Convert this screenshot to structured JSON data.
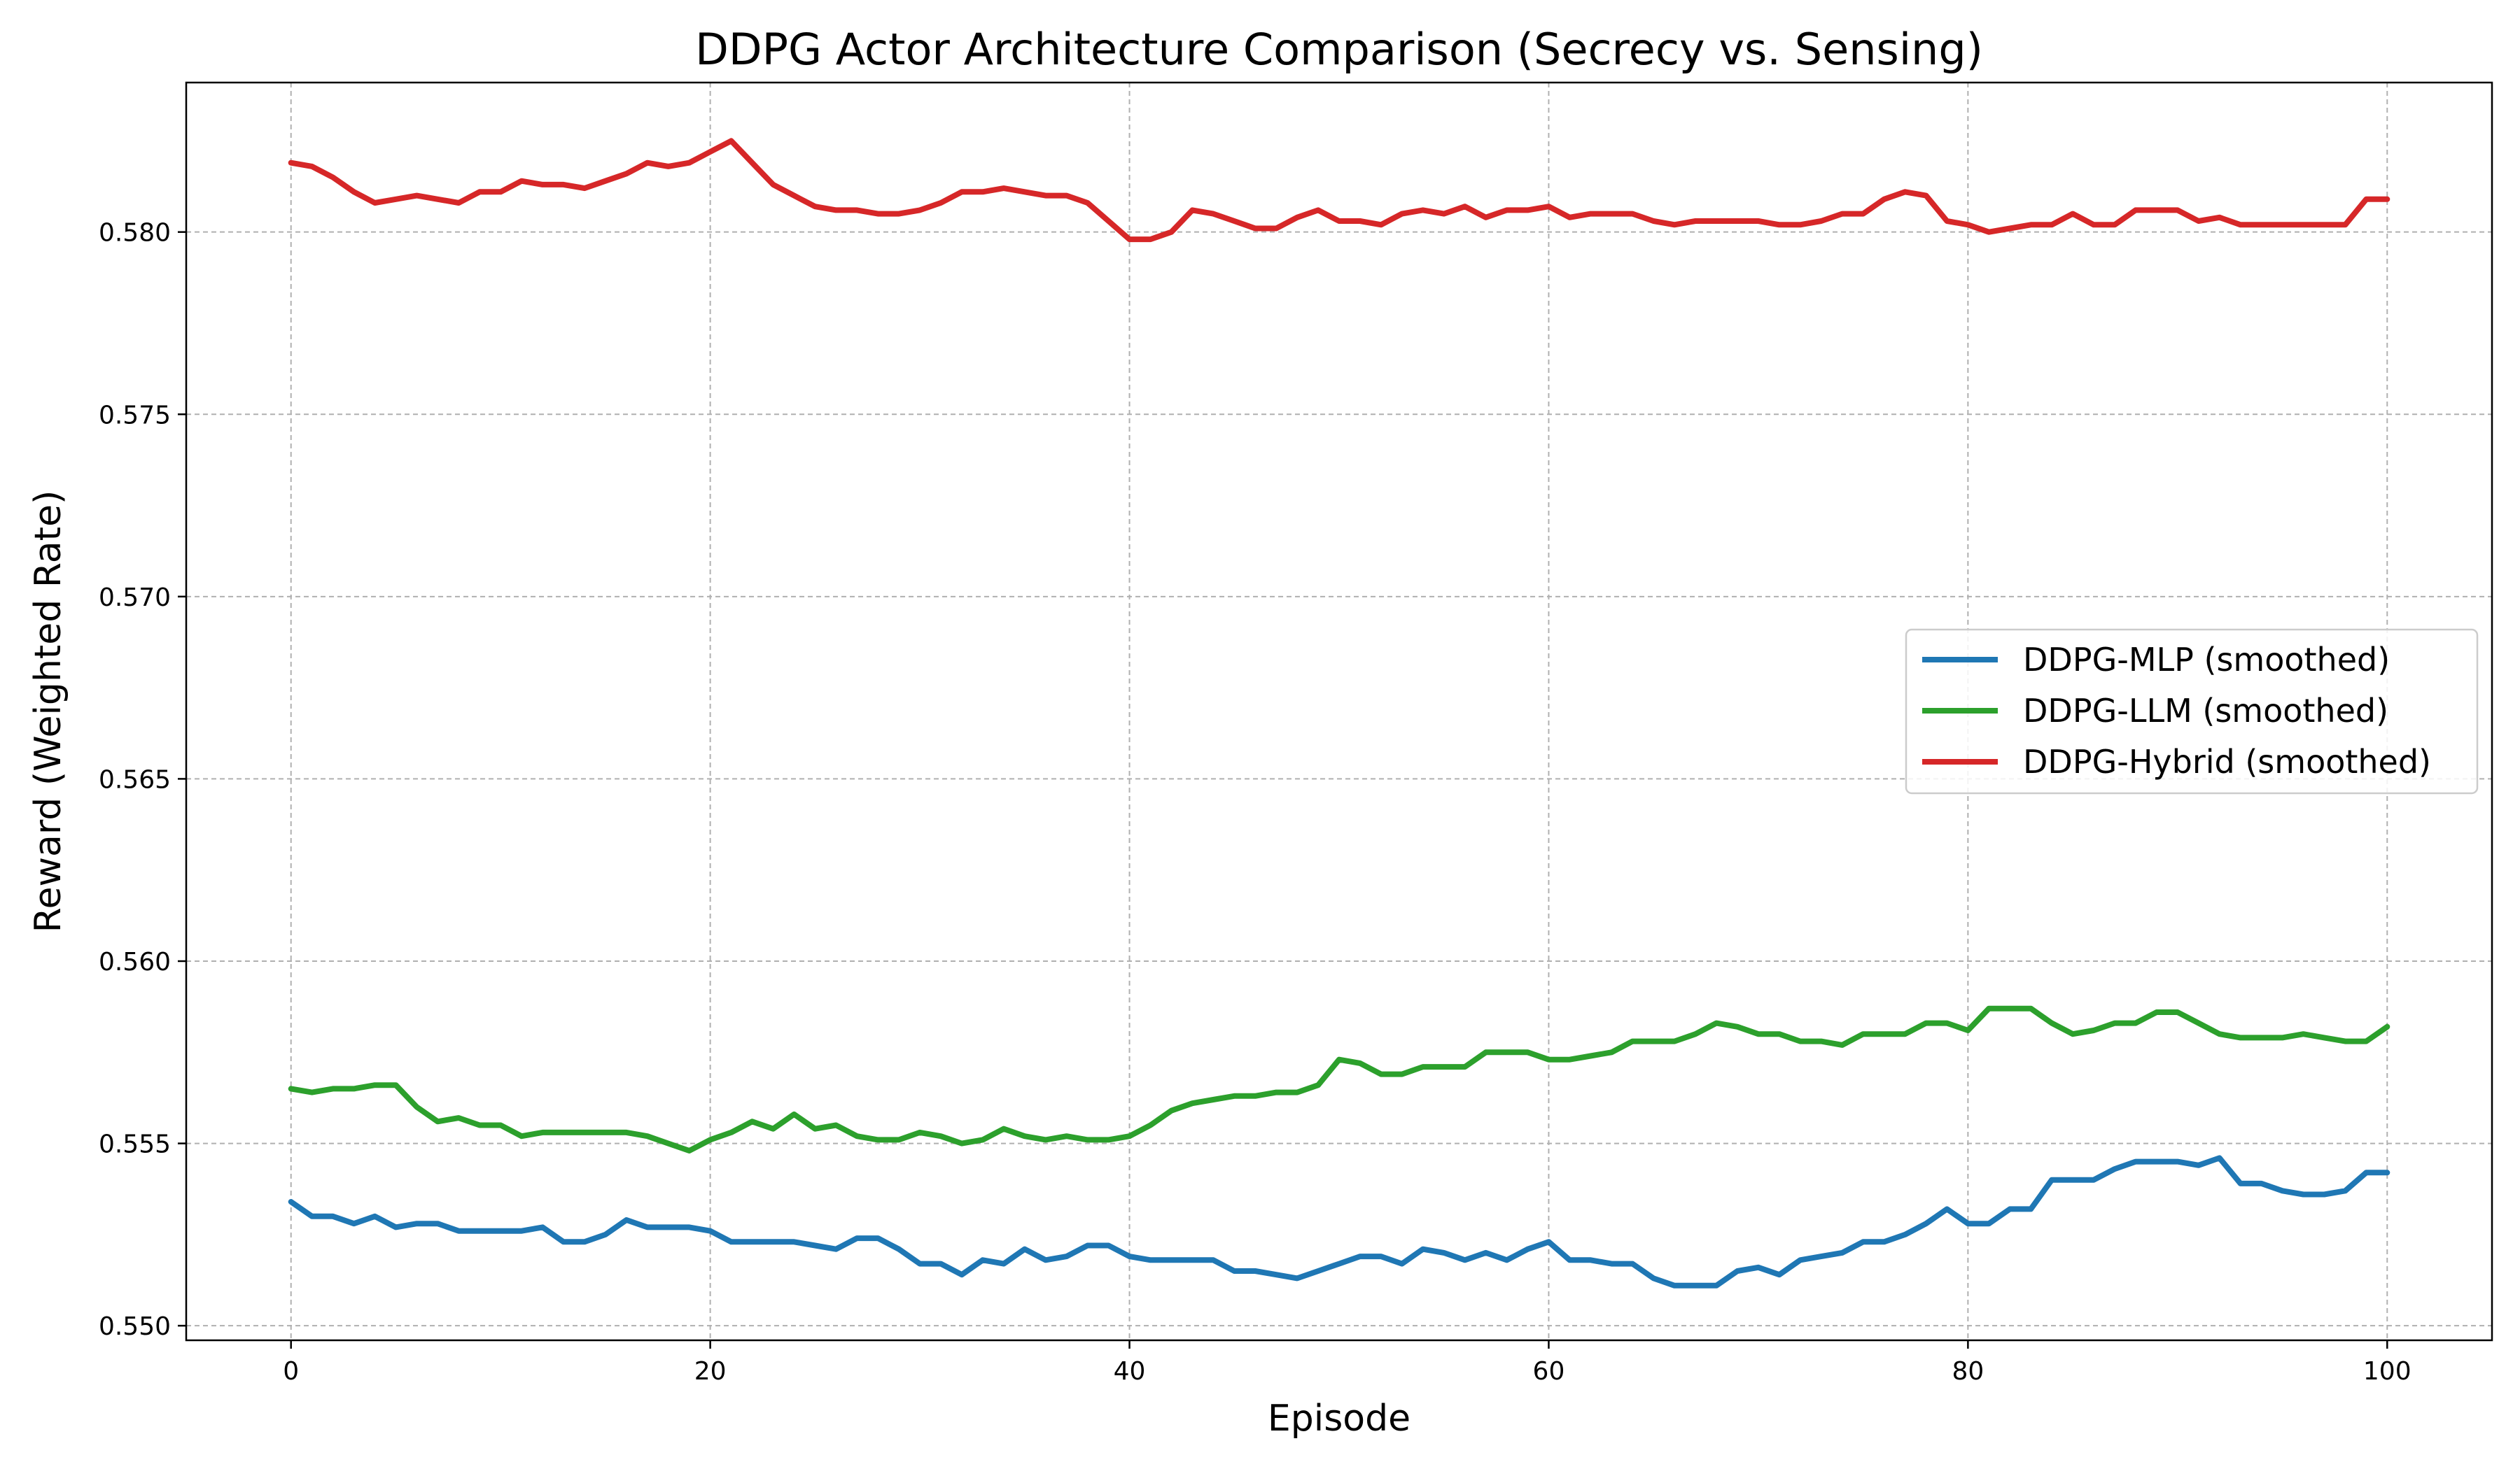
{
  "chart_data": {
    "type": "line",
    "title": "DDPG Actor Architecture Comparison (Secrecy vs. Sensing)",
    "xlabel": "Episode",
    "ylabel": "Reward (Weighted Rate)",
    "xlim": [
      -5,
      105
    ],
    "ylim": [
      0.5496,
      0.5841
    ],
    "xticks": [
      0,
      20,
      40,
      60,
      80,
      100
    ],
    "xtick_labels": [
      "0",
      "20",
      "40",
      "60",
      "80",
      "100"
    ],
    "yticks": [
      0.55,
      0.555,
      0.56,
      0.565,
      0.57,
      0.575,
      0.58
    ],
    "ytick_labels": [
      "0.550",
      "0.555",
      "0.560",
      "0.565",
      "0.570",
      "0.575",
      "0.580"
    ],
    "grid": true,
    "legend_position": "center-right",
    "series": [
      {
        "name": "DDPG-MLP (smoothed)",
        "color": "#1f77b4",
        "x": [
          0,
          1,
          2,
          3,
          4,
          5,
          6,
          7,
          8,
          9,
          10,
          11,
          12,
          13,
          14,
          15,
          16,
          17,
          18,
          19,
          20,
          21,
          22,
          23,
          24,
          25,
          26,
          27,
          28,
          29,
          30,
          31,
          32,
          33,
          34,
          35,
          36,
          37,
          38,
          39,
          40,
          41,
          42,
          43,
          44,
          45,
          46,
          47,
          48,
          49,
          50,
          51,
          52,
          53,
          54,
          55,
          56,
          57,
          58,
          59,
          60,
          61,
          62,
          63,
          64,
          65,
          66,
          67,
          68,
          69,
          70,
          71,
          72,
          73,
          74,
          75,
          76,
          77,
          78,
          79,
          80,
          81,
          82,
          83,
          84,
          85,
          86,
          87,
          88,
          89,
          90,
          91,
          92,
          93,
          94,
          95,
          96,
          97,
          98,
          99,
          100
        ],
        "y": [
          0.5534,
          0.553,
          0.553,
          0.5528,
          0.553,
          0.5527,
          0.5528,
          0.5528,
          0.5526,
          0.5526,
          0.5526,
          0.5526,
          0.5527,
          0.5523,
          0.5523,
          0.5525,
          0.5529,
          0.5527,
          0.5527,
          0.5527,
          0.5526,
          0.5523,
          0.5523,
          0.5523,
          0.5523,
          0.5522,
          0.5521,
          0.5524,
          0.5524,
          0.5521,
          0.5517,
          0.5517,
          0.5514,
          0.5518,
          0.5517,
          0.5521,
          0.5518,
          0.5519,
          0.5522,
          0.5522,
          0.5519,
          0.5518,
          0.5518,
          0.5518,
          0.5518,
          0.5515,
          0.5515,
          0.5514,
          0.5513,
          0.5515,
          0.5517,
          0.5519,
          0.5519,
          0.5517,
          0.5521,
          0.552,
          0.5518,
          0.552,
          0.5518,
          0.5521,
          0.5523,
          0.5518,
          0.5518,
          0.5517,
          0.5517,
          0.5513,
          0.5511,
          0.5511,
          0.5511,
          0.5515,
          0.5516,
          0.5514,
          0.5518,
          0.5519,
          0.552,
          0.5523,
          0.5523,
          0.5525,
          0.5528,
          0.5532,
          0.5528,
          0.5528,
          0.5532,
          0.5532,
          0.554,
          0.554,
          0.554,
          0.5543,
          0.5545,
          0.5545,
          0.5545,
          0.5544,
          0.5546,
          0.5539,
          0.5539,
          0.5537,
          0.5536,
          0.5536,
          0.5537,
          0.5542,
          0.5542
        ]
      },
      {
        "name": "DDPG-LLM (smoothed)",
        "color": "#2ca02c",
        "x": [
          0,
          1,
          2,
          3,
          4,
          5,
          6,
          7,
          8,
          9,
          10,
          11,
          12,
          13,
          14,
          15,
          16,
          17,
          18,
          19,
          20,
          21,
          22,
          23,
          24,
          25,
          26,
          27,
          28,
          29,
          30,
          31,
          32,
          33,
          34,
          35,
          36,
          37,
          38,
          39,
          40,
          41,
          42,
          43,
          44,
          45,
          46,
          47,
          48,
          49,
          50,
          51,
          52,
          53,
          54,
          55,
          56,
          57,
          58,
          59,
          60,
          61,
          62,
          63,
          64,
          65,
          66,
          67,
          68,
          69,
          70,
          71,
          72,
          73,
          74,
          75,
          76,
          77,
          78,
          79,
          80,
          81,
          82,
          83,
          84,
          85,
          86,
          87,
          88,
          89,
          90,
          91,
          92,
          93,
          94,
          95,
          96,
          97,
          98,
          99,
          100
        ],
        "y": [
          0.5565,
          0.5564,
          0.5565,
          0.5565,
          0.5566,
          0.5566,
          0.556,
          0.5556,
          0.5557,
          0.5555,
          0.5555,
          0.5552,
          0.5553,
          0.5553,
          0.5553,
          0.5553,
          0.5553,
          0.5552,
          0.555,
          0.5548,
          0.5551,
          0.5553,
          0.5556,
          0.5554,
          0.5558,
          0.5554,
          0.5555,
          0.5552,
          0.5551,
          0.5551,
          0.5553,
          0.5552,
          0.555,
          0.5551,
          0.5554,
          0.5552,
          0.5551,
          0.5552,
          0.5551,
          0.5551,
          0.5552,
          0.5555,
          0.5559,
          0.5561,
          0.5562,
          0.5563,
          0.5563,
          0.5564,
          0.5564,
          0.5566,
          0.5573,
          0.5572,
          0.5569,
          0.5569,
          0.5571,
          0.5571,
          0.5571,
          0.5575,
          0.5575,
          0.5575,
          0.5573,
          0.5573,
          0.5574,
          0.5575,
          0.5578,
          0.5578,
          0.5578,
          0.558,
          0.5583,
          0.5582,
          0.558,
          0.558,
          0.5578,
          0.5578,
          0.5577,
          0.558,
          0.558,
          0.558,
          0.5583,
          0.5583,
          0.5581,
          0.5587,
          0.5587,
          0.5587,
          0.5583,
          0.558,
          0.5581,
          0.5583,
          0.5583,
          0.5586,
          0.5586,
          0.5583,
          0.558,
          0.5579,
          0.5579,
          0.5579,
          0.558,
          0.5579,
          0.5578,
          0.5578,
          0.5582
        ]
      },
      {
        "name": "DDPG-Hybrid (smoothed)",
        "color": "#d62728",
        "x": [
          0,
          1,
          2,
          3,
          4,
          5,
          6,
          7,
          8,
          9,
          10,
          11,
          12,
          13,
          14,
          15,
          16,
          17,
          18,
          19,
          20,
          21,
          22,
          23,
          24,
          25,
          26,
          27,
          28,
          29,
          30,
          31,
          32,
          33,
          34,
          35,
          36,
          37,
          38,
          39,
          40,
          41,
          42,
          43,
          44,
          45,
          46,
          47,
          48,
          49,
          50,
          51,
          52,
          53,
          54,
          55,
          56,
          57,
          58,
          59,
          60,
          61,
          62,
          63,
          64,
          65,
          66,
          67,
          68,
          69,
          70,
          71,
          72,
          73,
          74,
          75,
          76,
          77,
          78,
          79,
          80,
          81,
          82,
          83,
          84,
          85,
          86,
          87,
          88,
          89,
          90,
          91,
          92,
          93,
          94,
          95,
          96,
          97,
          98,
          99,
          100
        ],
        "y": [
          0.5819,
          0.5818,
          0.5815,
          0.5811,
          0.5808,
          0.5809,
          0.581,
          0.5809,
          0.5808,
          0.5811,
          0.5811,
          0.5814,
          0.5813,
          0.5813,
          0.5812,
          0.5814,
          0.5816,
          0.5819,
          0.5818,
          0.5819,
          0.5822,
          0.5825,
          0.5819,
          0.5813,
          0.581,
          0.5807,
          0.5806,
          0.5806,
          0.5805,
          0.5805,
          0.5806,
          0.5808,
          0.5811,
          0.5811,
          0.5812,
          0.5811,
          0.581,
          0.581,
          0.5808,
          0.5803,
          0.5798,
          0.5798,
          0.58,
          0.5806,
          0.5805,
          0.5803,
          0.5801,
          0.5801,
          0.5804,
          0.5806,
          0.5803,
          0.5803,
          0.5802,
          0.5805,
          0.5806,
          0.5805,
          0.5807,
          0.5804,
          0.5806,
          0.5806,
          0.5807,
          0.5804,
          0.5805,
          0.5805,
          0.5805,
          0.5803,
          0.5802,
          0.5803,
          0.5803,
          0.5803,
          0.5803,
          0.5802,
          0.5802,
          0.5803,
          0.5805,
          0.5805,
          0.5809,
          0.5811,
          0.581,
          0.5803,
          0.5802,
          0.58,
          0.5801,
          0.5802,
          0.5802,
          0.5805,
          0.5802,
          0.5802,
          0.5806,
          0.5806,
          0.5806,
          0.5803,
          0.5804,
          0.5802,
          0.5802,
          0.5802,
          0.5802,
          0.5802,
          0.5802,
          0.5809,
          0.5809
        ]
      }
    ]
  }
}
